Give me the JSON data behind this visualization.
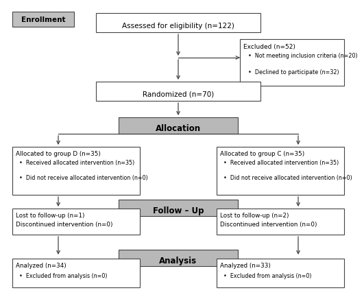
{
  "enrollment_label": "Enrollment",
  "box_eligibility": "Assessed for eligibility (n=122)",
  "box_excluded_title": "Excluded (n=52)",
  "box_excluded_b1": "Not meeting inclusion criteria (n=20)",
  "box_excluded_b2": "Declined to participate (n=32)",
  "box_randomized": "Randomized (n=70)",
  "box_allocation": "Allocation",
  "box_followup": "Follow – Up",
  "box_analysis": "Analysis",
  "box_group_d_title": "Allocated to group D (n=35)",
  "box_group_d_b1": "Received allocated intervention (n=35)",
  "box_group_d_b2": "Did not receive allocated intervention (n=0)",
  "box_group_c_title": "Allocated to group C (n=35)",
  "box_group_c_b1": "Received allocated intervention (n=35)",
  "box_group_c_b2": "Did not receive allocated intervention (n=0)",
  "box_lost_d_l1": "Lost to follow-up (n=1)",
  "box_lost_d_l2": "Discontinued intervention (n=0)",
  "box_lost_c_l1": "Lost to follow-up (n=2)",
  "box_lost_c_l2": "Discontinued intervention (n=0)",
  "box_analyzed_d_l1": "Analyzed (n=34)",
  "box_analyzed_d_b1": "Excluded from analysis (n=0)",
  "box_analyzed_c_l1": "Analyzed (n=33)",
  "box_analyzed_c_b1": "Excluded from analysis (n=0)",
  "bg_color": "#ffffff",
  "box_edge_color": "#444444",
  "shaded_box_color": "#b8b8b8",
  "text_color": "#000000",
  "arrow_color": "#444444",
  "enrollment_bg": "#c0c0c0"
}
